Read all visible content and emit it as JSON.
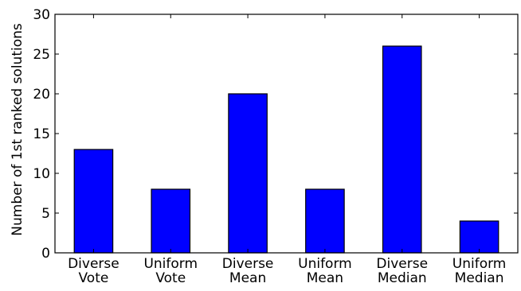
{
  "chart_data": {
    "type": "bar",
    "title": "",
    "xlabel": "",
    "ylabel": "Number of 1st ranked solutions",
    "ylim": [
      0,
      30
    ],
    "yticks": [
      0,
      5,
      10,
      15,
      20,
      25,
      30
    ],
    "grid": false,
    "categories": [
      [
        "Diverse",
        "Vote"
      ],
      [
        "Uniform",
        "Vote"
      ],
      [
        "Diverse",
        "Mean"
      ],
      [
        "Uniform",
        "Mean"
      ],
      [
        "Diverse",
        "Median"
      ],
      [
        "Uniform",
        "Median"
      ]
    ],
    "values": [
      13,
      8,
      20,
      8,
      26,
      4
    ],
    "bar_color": "#0000ff",
    "edge_color": "#000000"
  }
}
